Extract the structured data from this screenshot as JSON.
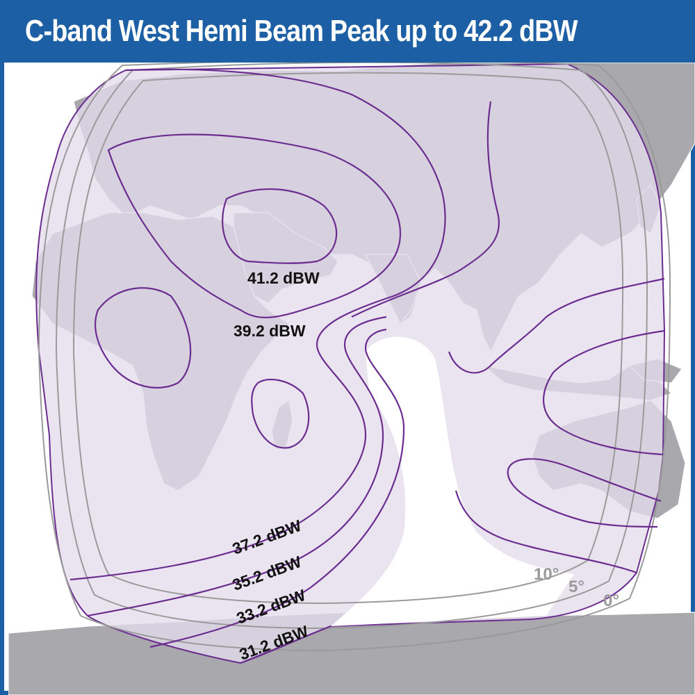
{
  "title": "C-band West Hemi Beam Peak up to 42.2 dBW",
  "contour_labels": {
    "c41": "41.2 dBW",
    "c39": "39.2 dBW",
    "c37": "37.2 dBW",
    "c35": "35.2 dBW",
    "c33": "33.2 dBW",
    "c31": "31.2 dBW"
  },
  "elevation_labels": {
    "e10": "10°",
    "e5": "5°",
    "e0": "0°"
  },
  "colors": {
    "header": "#1d5fa5",
    "land": "#a8a8ad",
    "coverage_fill": "#e4dced",
    "contour": "#6b2c8f",
    "elevation_line": "#9a9a9a"
  }
}
